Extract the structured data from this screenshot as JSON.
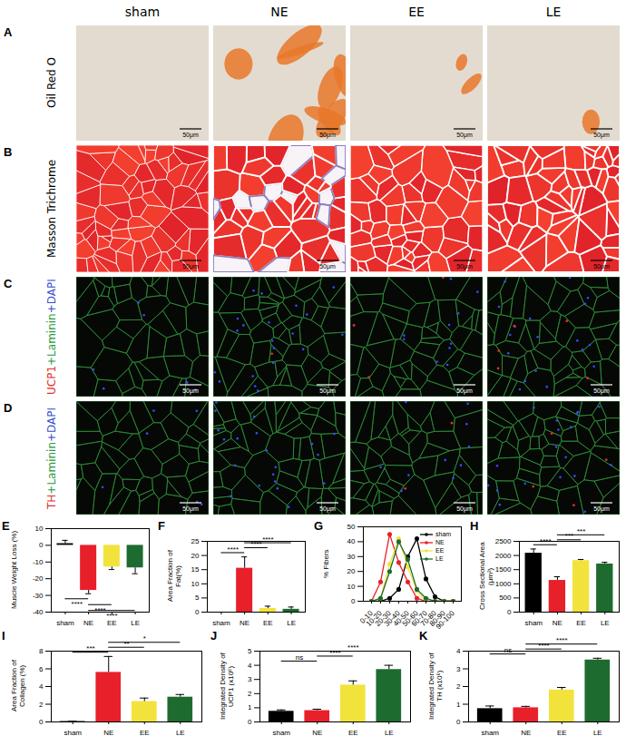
{
  "figure": {
    "columns": [
      "sham",
      "NE",
      "EE",
      "LE"
    ],
    "rows": [
      {
        "panel": "A",
        "stain": [
          {
            "text": "Oil Red O",
            "color": "#000000"
          }
        ]
      },
      {
        "panel": "B",
        "stain": [
          {
            "text": "Masson Trichrome",
            "color": "#000000"
          }
        ]
      },
      {
        "panel": "C",
        "stain": [
          {
            "text": "UCP1",
            "color": "#e0302a"
          },
          {
            "text": "+Laminin",
            "color": "#2a9a3a"
          },
          {
            "text": "+DAPI",
            "color": "#3a4cd0"
          }
        ]
      },
      {
        "panel": "D",
        "stain": [
          {
            "text": "TH",
            "color": "#e0302a"
          },
          {
            "text": "+Laminin",
            "color": "#2a9a3a"
          },
          {
            "text": "+DAPI",
            "color": "#3a4cd0"
          }
        ]
      }
    ],
    "scale_bar": "50μm"
  },
  "chart_data": [
    {
      "panel": "E",
      "type": "bar",
      "y_label": "Muscle Weight Loss (%)",
      "categories": [
        "sham",
        "NE",
        "EE",
        "LE"
      ],
      "values": [
        1,
        -27,
        -13,
        -13.5
      ],
      "errors": [
        2,
        2,
        1.5,
        3.5
      ],
      "colors": [
        "#000000",
        "#e8202a",
        "#f2e33c",
        "#1e6b30"
      ],
      "ylim": [
        -40,
        10
      ],
      "yticks": [
        -40,
        -30,
        -20,
        -10,
        0,
        10
      ],
      "significance": [
        {
          "pair": [
            "sham",
            "NE"
          ],
          "label": "****"
        },
        {
          "pair": [
            "NE",
            "EE"
          ],
          "label": "****"
        },
        {
          "pair": [
            "NE",
            "LE"
          ],
          "label": "****"
        }
      ]
    },
    {
      "panel": "F",
      "type": "bar",
      "y_label": "Area Fraction of Fat(%)",
      "categories": [
        "sham",
        "NE",
        "EE",
        "LE"
      ],
      "values": [
        0,
        15.5,
        1.3,
        1
      ],
      "errors": [
        0,
        4,
        0.8,
        0.8
      ],
      "colors": [
        "#000000",
        "#e8202a",
        "#f2e33c",
        "#1e6b30"
      ],
      "ylim": [
        0,
        25
      ],
      "yticks": [
        0,
        5,
        10,
        15,
        20,
        25
      ],
      "significance": [
        {
          "pair": [
            "sham",
            "NE"
          ],
          "label": "****"
        },
        {
          "pair": [
            "NE",
            "EE"
          ],
          "label": "****"
        },
        {
          "pair": [
            "NE",
            "LE"
          ],
          "label": "****"
        }
      ]
    },
    {
      "panel": "G",
      "type": "line",
      "y_label": "% Fibers",
      "categories": [
        "0-10",
        "10-20",
        "20-30",
        "30-40",
        "40-50",
        "50-60",
        "60-70",
        "70-80",
        "80-90",
        "90-100"
      ],
      "series": [
        {
          "name": "sham",
          "color": "#000000",
          "values": [
            0,
            0,
            2,
            8,
            30,
            42,
            15,
            3,
            0,
            0
          ]
        },
        {
          "name": "NE",
          "color": "#e8202a",
          "values": [
            0,
            13,
            45,
            26,
            13,
            2,
            0,
            0,
            0,
            0
          ]
        },
        {
          "name": "EE",
          "color": "#f2e33c",
          "values": [
            0,
            2,
            25,
            42,
            23,
            7,
            0,
            0,
            0,
            0
          ]
        },
        {
          "name": "LE",
          "color": "#1e6b30",
          "values": [
            0,
            2,
            20,
            40,
            28,
            8,
            2,
            0,
            0,
            0
          ]
        }
      ],
      "marker": "circle",
      "ylim": [
        0,
        50
      ],
      "yticks": [
        0,
        10,
        20,
        30,
        40,
        50
      ],
      "legend": "upper right"
    },
    {
      "panel": "H",
      "type": "bar",
      "y_label": "Cross Sectional Area (μm²)",
      "categories": [
        "sham",
        "NE",
        "EE",
        "LE"
      ],
      "values": [
        2080,
        1120,
        1820,
        1700
      ],
      "errors": [
        150,
        130,
        40,
        60
      ],
      "colors": [
        "#000000",
        "#e8202a",
        "#f2e33c",
        "#1e6b30"
      ],
      "ylim": [
        0,
        2500
      ],
      "yticks": [
        0,
        500,
        1000,
        1500,
        2000,
        2500
      ],
      "significance": [
        {
          "pair": [
            "sham",
            "NE"
          ],
          "label": "****"
        },
        {
          "pair": [
            "NE",
            "EE"
          ],
          "label": "***"
        },
        {
          "pair": [
            "NE",
            "LE"
          ],
          "label": "***"
        }
      ]
    },
    {
      "panel": "I",
      "type": "bar",
      "y_label": "Area Fraction of Collagen (%)",
      "categories": [
        "sham",
        "NE",
        "EE",
        "LE"
      ],
      "values": [
        0.05,
        5.6,
        2.3,
        2.8
      ],
      "errors": [
        0.03,
        1.8,
        0.4,
        0.3
      ],
      "colors": [
        "#000000",
        "#e8202a",
        "#f2e33c",
        "#1e6b30"
      ],
      "ylim": [
        0,
        8
      ],
      "yticks": [
        0,
        2,
        4,
        6,
        8
      ],
      "significance": [
        {
          "pair": [
            "sham",
            "NE"
          ],
          "label": "***"
        },
        {
          "pair": [
            "NE",
            "EE"
          ],
          "label": "**"
        },
        {
          "pair": [
            "NE",
            "LE"
          ],
          "label": "*"
        }
      ]
    },
    {
      "panel": "J",
      "type": "bar",
      "y_label": "Integrated Density of UCP1 (x10⁶)",
      "categories": [
        "sham",
        "NE",
        "EE",
        "LE"
      ],
      "values": [
        0.75,
        0.8,
        2.6,
        3.7
      ],
      "errors": [
        0.1,
        0.1,
        0.3,
        0.3
      ],
      "colors": [
        "#000000",
        "#e8202a",
        "#f2e33c",
        "#1e6b30"
      ],
      "ylim": [
        0,
        5
      ],
      "yticks": [
        0,
        1,
        2,
        3,
        4,
        5
      ],
      "significance": [
        {
          "pair": [
            "sham",
            "NE"
          ],
          "label": "ns"
        },
        {
          "pair": [
            "NE",
            "EE"
          ],
          "label": "****"
        },
        {
          "pair": [
            "NE",
            "LE"
          ],
          "label": "****"
        }
      ]
    },
    {
      "panel": "K",
      "type": "bar",
      "y_label": "Integrated Density of TH (x10⁶)",
      "categories": [
        "sham",
        "NE",
        "EE",
        "LE"
      ],
      "values": [
        0.75,
        0.8,
        1.8,
        3.5
      ],
      "errors": [
        0.15,
        0.08,
        0.15,
        0.1
      ],
      "colors": [
        "#000000",
        "#e8202a",
        "#f2e33c",
        "#1e6b30"
      ],
      "ylim": [
        0,
        4
      ],
      "yticks": [
        0,
        1,
        2,
        3,
        4
      ],
      "significance": [
        {
          "pair": [
            "sham",
            "NE"
          ],
          "label": "ns"
        },
        {
          "pair": [
            "NE",
            "EE"
          ],
          "label": "****"
        },
        {
          "pair": [
            "NE",
            "LE"
          ],
          "label": "****"
        }
      ]
    }
  ]
}
